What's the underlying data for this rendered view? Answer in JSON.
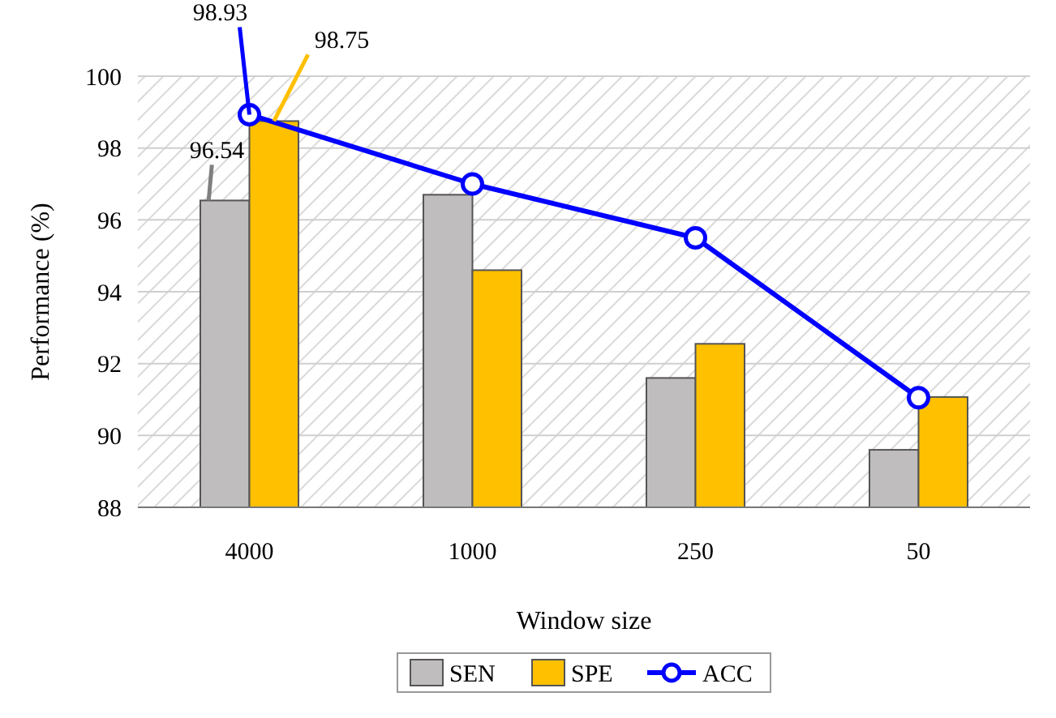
{
  "chart_data": {
    "type": "bar",
    "xlabel": "Window size",
    "ylabel": "Performance (%)",
    "categories": [
      "4000",
      "1000",
      "250",
      "50"
    ],
    "series": [
      {
        "name": "SEN",
        "color": "#bfbdbd",
        "values": [
          96.54,
          96.7,
          91.6,
          89.6
        ],
        "value_labels": [
          "96.54",
          null,
          null,
          null
        ]
      },
      {
        "name": "SPE",
        "color": "#ffc000",
        "values": [
          98.75,
          94.6,
          92.55,
          91.07
        ],
        "value_labels": [
          "98.75",
          null,
          null,
          null
        ]
      },
      {
        "name": "ACC",
        "type": "line",
        "color": "#0000ff",
        "marker": "circle",
        "values": [
          98.93,
          97.0,
          95.5,
          91.05
        ],
        "value_labels": [
          "98.93",
          null,
          null,
          null
        ]
      }
    ],
    "ylim": [
      88,
      100
    ],
    "yticks": [
      88,
      90,
      92,
      94,
      96,
      98,
      100
    ],
    "grid": "y",
    "legend": "bottom"
  }
}
